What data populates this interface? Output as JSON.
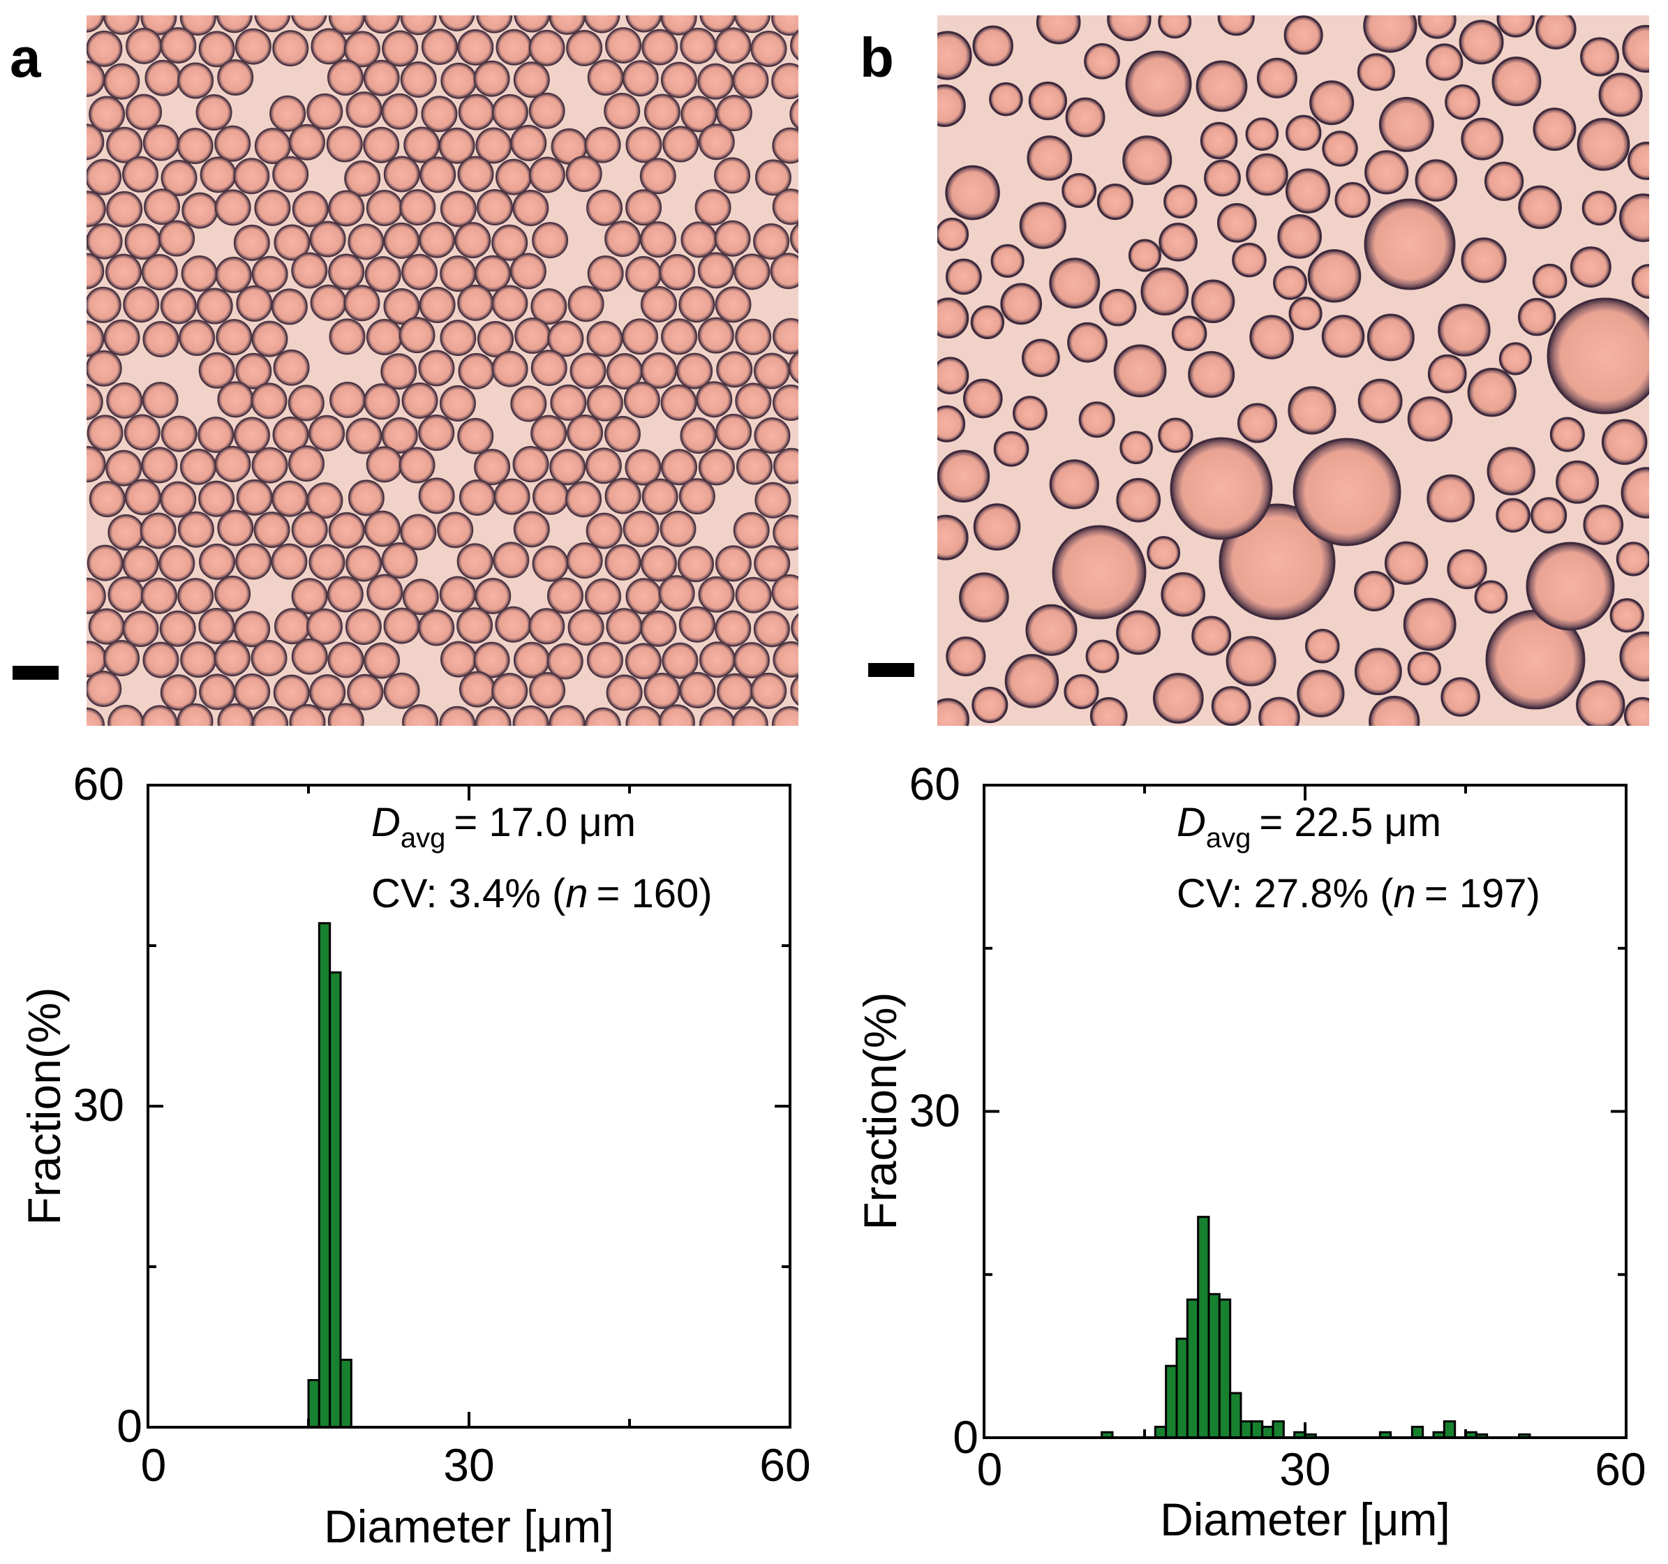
{
  "panels": [
    {
      "label": "a"
    },
    {
      "label": "b"
    }
  ],
  "colors": {
    "bar_fill": "#17812f",
    "micrograph_bg": "#f1d2c8",
    "droplet_fill": "#e8a596",
    "droplet_rim": "#5a3a48"
  },
  "chart_data": [
    {
      "type": "bar",
      "panel": "a",
      "xlabel": "Diameter [μm]",
      "ylabel": "Fraction(%)",
      "xlim": [
        0,
        60
      ],
      "ylim": [
        0,
        60
      ],
      "xticks": [
        "0",
        "30",
        "60"
      ],
      "yticks": [
        "0",
        "30",
        "60"
      ],
      "bin_width": 1,
      "bins": [
        {
          "x": 15,
          "value": 4.4
        },
        {
          "x": 16,
          "value": 47.1
        },
        {
          "x": 17,
          "value": 42.5
        },
        {
          "x": 18,
          "value": 6.3
        }
      ],
      "annotation": {
        "d_symbol": "D",
        "d_sub": "avg",
        "d_value": "= 17.0 μm",
        "cv_prefix": "CV: 3.4% (",
        "n_symbol": "n",
        "n_suffix": "= 160)"
      }
    },
    {
      "type": "bar",
      "panel": "b",
      "xlabel": "Diameter [μm]",
      "ylabel": "Fraction(%)",
      "xlim": [
        0,
        60
      ],
      "ylim": [
        0,
        60
      ],
      "xticks": [
        "0",
        "30",
        "60"
      ],
      "yticks": [
        "0",
        "30",
        "60"
      ],
      "bin_width": 1,
      "bins": [
        {
          "x": 11,
          "value": 0.5
        },
        {
          "x": 16,
          "value": 1.0
        },
        {
          "x": 17,
          "value": 6.6
        },
        {
          "x": 18,
          "value": 9.1
        },
        {
          "x": 19,
          "value": 12.7
        },
        {
          "x": 20,
          "value": 20.3
        },
        {
          "x": 21,
          "value": 13.2
        },
        {
          "x": 22,
          "value": 12.7
        },
        {
          "x": 23,
          "value": 4.1
        },
        {
          "x": 24,
          "value": 1.5
        },
        {
          "x": 25,
          "value": 1.5
        },
        {
          "x": 26,
          "value": 1.0
        },
        {
          "x": 27,
          "value": 1.5
        },
        {
          "x": 29,
          "value": 0.5
        },
        {
          "x": 30,
          "value": 0.3
        },
        {
          "x": 37,
          "value": 0.5
        },
        {
          "x": 40,
          "value": 1.0
        },
        {
          "x": 42,
          "value": 0.5
        },
        {
          "x": 43,
          "value": 1.5
        },
        {
          "x": 45,
          "value": 0.5
        },
        {
          "x": 46,
          "value": 0.3
        },
        {
          "x": 50,
          "value": 0.3
        }
      ],
      "annotation": {
        "d_symbol": "D",
        "d_sub": "avg",
        "d_value": "= 22.5 μm",
        "cv_prefix": "CV: 27.8% (",
        "n_symbol": "n",
        "n_suffix": "= 197)"
      }
    }
  ]
}
